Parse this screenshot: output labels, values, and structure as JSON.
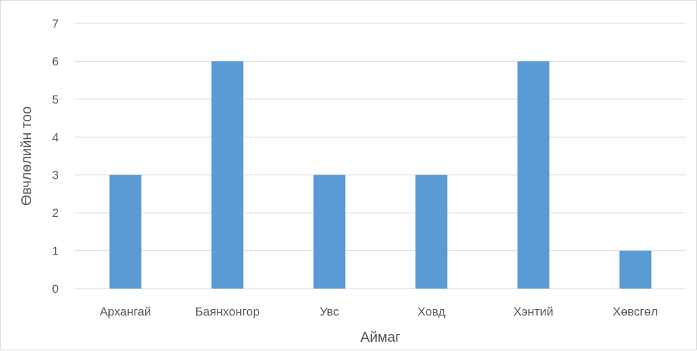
{
  "chart_data": {
    "type": "bar",
    "title": "",
    "xlabel": "Аймаг",
    "ylabel": "Өвчлөлийн тоо",
    "categories": [
      "Архангай",
      "Баянхонгор",
      "Увс",
      "Ховд",
      "Хэнтий",
      "Хөвсгөл"
    ],
    "values": [
      3,
      6,
      3,
      3,
      6,
      1
    ],
    "ylim": [
      0,
      7
    ],
    "yticks": [
      "0",
      "1",
      "2",
      "3",
      "4",
      "5",
      "6",
      "7"
    ],
    "grid": true,
    "legend": "none",
    "bar_color": "#5b9bd5",
    "grid_color": "#d9d9d9",
    "text_color": "#595959"
  }
}
